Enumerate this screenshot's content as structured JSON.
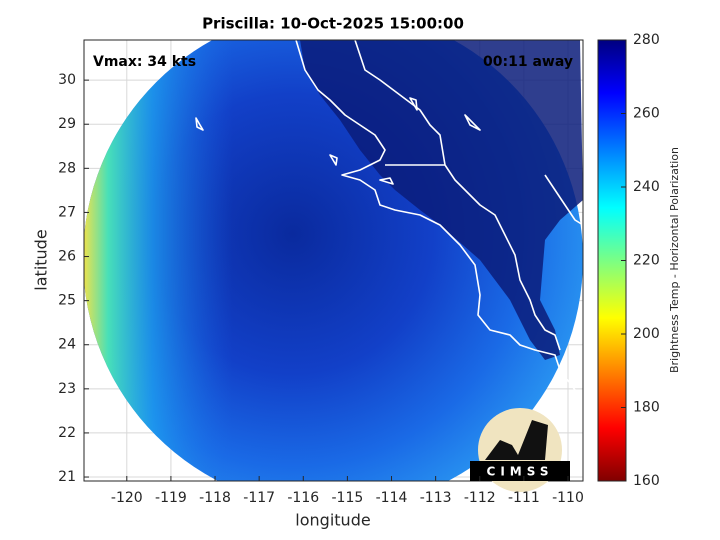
{
  "chart_data": {
    "type": "image",
    "title": "Priscilla: 10-Oct-2025 15:00:00",
    "annotations": [
      "Vmax: 34 kts",
      "00:11 away"
    ],
    "xlabel": "longitude",
    "ylabel": "latitude",
    "xlim": [
      -120.97,
      -109.66
    ],
    "ylim": [
      20.91,
      30.91
    ],
    "xticks": [
      -120,
      -119,
      -118,
      -117,
      -116,
      -115,
      -114,
      -113,
      -112,
      -111,
      -110
    ],
    "yticks": [
      21,
      22,
      23,
      24,
      25,
      26,
      27,
      28,
      29,
      30
    ],
    "grid": true,
    "colorbar": {
      "label": "Brightness Temp - Horizontal Polarization",
      "lim": [
        160,
        280
      ],
      "ticks": [
        160,
        180,
        200,
        220,
        240,
        260,
        280
      ],
      "colormap": "jet"
    },
    "logo": "CIMSS"
  }
}
